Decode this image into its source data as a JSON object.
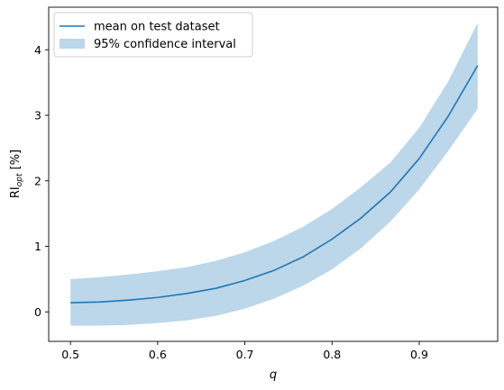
{
  "chart_data": {
    "type": "line",
    "title": "",
    "xlabel": "q",
    "ylabel": {
      "base": "RI",
      "subscript": "opt",
      "suffix": " [%]"
    },
    "xlim": [
      0.475,
      0.99
    ],
    "ylim": [
      -0.45,
      4.65
    ],
    "xticks": [
      0.5,
      0.6,
      0.7,
      0.8,
      0.9
    ],
    "xtick_labels": [
      "0.5",
      "0.6",
      "0.7",
      "0.8",
      "0.9"
    ],
    "yticks": [
      0,
      1,
      2,
      3,
      4
    ],
    "ytick_labels": [
      "0",
      "1",
      "2",
      "3",
      "4"
    ],
    "grid": false,
    "legend_position": "top-left",
    "x": [
      0.5,
      0.533,
      0.567,
      0.6,
      0.633,
      0.667,
      0.7,
      0.733,
      0.767,
      0.8,
      0.833,
      0.867,
      0.9,
      0.933,
      0.967
    ],
    "series": [
      {
        "name": "mean on test dataset",
        "kind": "line",
        "color": "#1f77b4",
        "values": [
          0.14,
          0.15,
          0.18,
          0.22,
          0.28,
          0.36,
          0.48,
          0.63,
          0.84,
          1.11,
          1.43,
          1.83,
          2.34,
          2.98,
          3.76
        ]
      },
      {
        "name": "95% confidence interval",
        "kind": "band",
        "color": "#a6c8e3",
        "lower": [
          -0.21,
          -0.21,
          -0.2,
          -0.17,
          -0.13,
          -0.06,
          0.05,
          0.2,
          0.4,
          0.65,
          0.97,
          1.38,
          1.87,
          2.45,
          3.1
        ],
        "upper": [
          0.5,
          0.53,
          0.57,
          0.62,
          0.68,
          0.78,
          0.91,
          1.08,
          1.3,
          1.57,
          1.9,
          2.28,
          2.81,
          3.51,
          4.41
        ]
      }
    ]
  }
}
